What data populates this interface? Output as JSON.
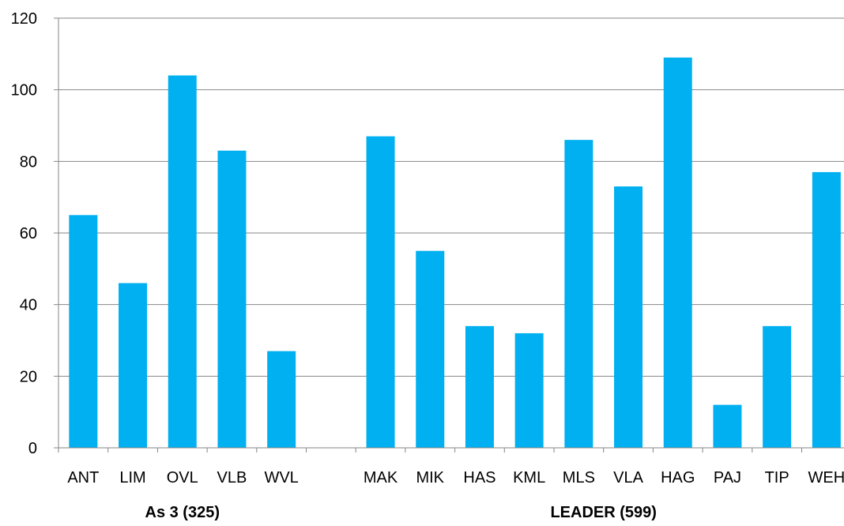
{
  "colors": {
    "bar": "#00b0f0",
    "grid": "#868686",
    "axis": "#868686",
    "text": "#000000",
    "background": "#ffffff"
  },
  "chart_data": {
    "type": "bar",
    "title": "",
    "xlabel": "",
    "ylabel": "",
    "ylim": [
      0,
      120
    ],
    "yticks": [
      0,
      20,
      40,
      60,
      80,
      100,
      120
    ],
    "grid": true,
    "legend": "none",
    "categories": [
      "ANT",
      "LIM",
      "OVL",
      "VLB",
      "WVL",
      "",
      "MAK",
      "MIK",
      "HAS",
      "KML",
      "MLS",
      "VLA",
      "HAG",
      "PAJ",
      "TIP",
      "WEH"
    ],
    "values": [
      65,
      46,
      104,
      83,
      27,
      null,
      87,
      55,
      34,
      32,
      86,
      73,
      109,
      12,
      34,
      77
    ],
    "groups": [
      {
        "label": "As 3 (325)",
        "first": 0,
        "last": 4
      },
      {
        "label": "LEADER (599)",
        "first": 6,
        "last": 15
      }
    ]
  }
}
